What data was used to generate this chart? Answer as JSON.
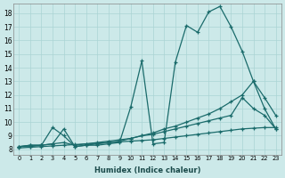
{
  "xlabel": "Humidex (Indice chaleur)",
  "xlim": [
    -0.5,
    23.5
  ],
  "ylim": [
    7.6,
    18.7
  ],
  "xticks": [
    0,
    1,
    2,
    3,
    4,
    5,
    6,
    7,
    8,
    9,
    10,
    11,
    12,
    13,
    14,
    15,
    16,
    17,
    18,
    19,
    20,
    21,
    22,
    23
  ],
  "yticks": [
    8,
    9,
    10,
    11,
    12,
    13,
    14,
    15,
    16,
    17,
    18
  ],
  "bg_color": "#cce9e9",
  "grid_color": "#aad4d4",
  "line_color": "#1a6b6b",
  "line1_x": [
    0,
    1,
    2,
    3,
    4,
    5,
    6,
    7,
    8,
    9,
    10,
    11,
    12,
    13,
    14,
    15,
    16,
    17,
    18,
    19,
    20,
    21,
    22,
    23
  ],
  "line1_y": [
    8.2,
    8.3,
    8.3,
    8.4,
    9.5,
    8.2,
    8.3,
    8.3,
    8.4,
    8.5,
    11.1,
    14.5,
    8.4,
    8.5,
    14.4,
    17.1,
    16.6,
    18.1,
    18.5,
    17.0,
    15.2,
    13.0,
    11.8,
    10.5
  ],
  "line2_x": [
    0,
    1,
    2,
    3,
    4,
    5,
    6,
    7,
    8,
    9,
    10,
    11,
    12,
    13,
    14,
    15,
    16,
    17,
    18,
    19,
    20,
    21,
    22,
    23
  ],
  "line2_y": [
    8.2,
    8.3,
    8.3,
    9.6,
    9.0,
    8.2,
    8.3,
    8.4,
    8.5,
    8.6,
    8.8,
    9.0,
    9.2,
    9.5,
    9.7,
    10.0,
    10.3,
    10.6,
    11.0,
    11.5,
    12.0,
    13.0,
    11.0,
    9.5
  ],
  "line3_x": [
    0,
    1,
    2,
    3,
    4,
    5,
    6,
    7,
    8,
    9,
    10,
    11,
    12,
    13,
    14,
    15,
    16,
    17,
    18,
    19,
    20,
    21,
    22,
    23
  ],
  "line3_y": [
    8.2,
    8.2,
    8.3,
    8.4,
    8.5,
    8.3,
    8.4,
    8.5,
    8.6,
    8.7,
    8.8,
    9.0,
    9.1,
    9.3,
    9.5,
    9.7,
    9.9,
    10.1,
    10.3,
    10.5,
    11.8,
    11.0,
    10.5,
    9.5
  ],
  "line4_x": [
    0,
    1,
    2,
    3,
    4,
    5,
    6,
    7,
    8,
    9,
    10,
    11,
    12,
    13,
    14,
    15,
    16,
    17,
    18,
    19,
    20,
    21,
    22,
    23
  ],
  "line4_y": [
    8.1,
    8.15,
    8.2,
    8.25,
    8.3,
    8.35,
    8.4,
    8.45,
    8.5,
    8.55,
    8.6,
    8.65,
    8.7,
    8.8,
    8.9,
    9.0,
    9.1,
    9.2,
    9.3,
    9.4,
    9.5,
    9.55,
    9.6,
    9.6
  ]
}
